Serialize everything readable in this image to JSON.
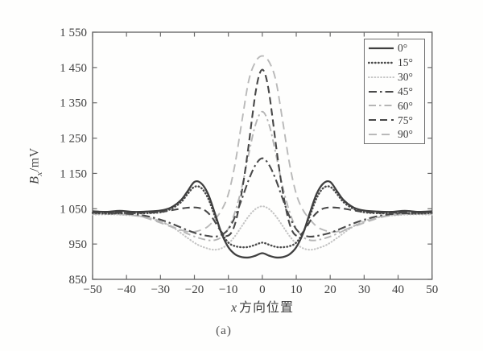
{
  "figure": {
    "caption": "(a)",
    "background": "#fefefd",
    "frame_color": "#6a6a6a",
    "text_color": "#3c3c3c"
  },
  "chart_data": {
    "type": "line",
    "title": "",
    "grid": false,
    "legend_position": "top-right",
    "xlabel_parts": [
      "x",
      "方向位置"
    ],
    "ylabel_parts": [
      "B",
      "x",
      "/mV"
    ],
    "xlim": [
      -50,
      50
    ],
    "ylim": [
      850,
      1550
    ],
    "xtick_values": [
      -50,
      -40,
      -30,
      -20,
      -10,
      0,
      10,
      20,
      30,
      40,
      50
    ],
    "xtick_labels": [
      "−50",
      "−40",
      "−30",
      "−20",
      "−10",
      "0",
      "10",
      "20",
      "30",
      "40",
      "50"
    ],
    "ytick_values": [
      850,
      950,
      1050,
      1150,
      1250,
      1350,
      1450,
      1550
    ],
    "ytick_labels": [
      "850",
      "950",
      "1 050",
      "1 150",
      "1 250",
      "1 350",
      "1 450",
      "1 550"
    ],
    "draw_order": [
      "30°",
      "90°",
      "60°",
      "75°",
      "45°",
      "15°",
      "0°"
    ],
    "series": [
      {
        "label": "0°",
        "style": "solid",
        "shade": "dark",
        "color": "#3f3f3f",
        "width": 2.3,
        "dash": "",
        "linecap": "butt",
        "points": [
          [
            -50,
            1043
          ],
          [
            -46,
            1041
          ],
          [
            -42,
            1044
          ],
          [
            -38,
            1041
          ],
          [
            -34,
            1042
          ],
          [
            -30,
            1045
          ],
          [
            -27,
            1053
          ],
          [
            -24,
            1074
          ],
          [
            -22,
            1100
          ],
          [
            -20,
            1126
          ],
          [
            -18,
            1122
          ],
          [
            -16,
            1092
          ],
          [
            -14,
            1038
          ],
          [
            -12,
            980
          ],
          [
            -10,
            941
          ],
          [
            -8,
            921
          ],
          [
            -6,
            913
          ],
          [
            -4,
            912
          ],
          [
            -2,
            917
          ],
          [
            0,
            924
          ],
          [
            2,
            917
          ],
          [
            4,
            912
          ],
          [
            6,
            913
          ],
          [
            8,
            921
          ],
          [
            10,
            941
          ],
          [
            12,
            980
          ],
          [
            14,
            1038
          ],
          [
            16,
            1092
          ],
          [
            18,
            1122
          ],
          [
            20,
            1126
          ],
          [
            22,
            1100
          ],
          [
            24,
            1074
          ],
          [
            27,
            1053
          ],
          [
            30,
            1045
          ],
          [
            34,
            1042
          ],
          [
            38,
            1041
          ],
          [
            42,
            1044
          ],
          [
            46,
            1041
          ],
          [
            50,
            1043
          ]
        ]
      },
      {
        "label": "15°",
        "style": "dotted",
        "shade": "dark",
        "color": "#4a4a4a",
        "width": 2.4,
        "dash": "0.6 3.4",
        "linecap": "round",
        "points": [
          [
            -50,
            1038
          ],
          [
            -45,
            1036
          ],
          [
            -40,
            1038
          ],
          [
            -35,
            1037
          ],
          [
            -30,
            1040
          ],
          [
            -27,
            1049
          ],
          [
            -24,
            1068
          ],
          [
            -22,
            1092
          ],
          [
            -20,
            1112
          ],
          [
            -18,
            1109
          ],
          [
            -16,
            1080
          ],
          [
            -14,
            1030
          ],
          [
            -12,
            983
          ],
          [
            -10,
            954
          ],
          [
            -8,
            944
          ],
          [
            -6,
            941
          ],
          [
            -4,
            942
          ],
          [
            -2,
            948
          ],
          [
            0,
            954
          ],
          [
            2,
            948
          ],
          [
            4,
            942
          ],
          [
            6,
            941
          ],
          [
            8,
            944
          ],
          [
            10,
            954
          ],
          [
            12,
            983
          ],
          [
            14,
            1030
          ],
          [
            16,
            1080
          ],
          [
            18,
            1109
          ],
          [
            20,
            1112
          ],
          [
            22,
            1092
          ],
          [
            24,
            1068
          ],
          [
            27,
            1049
          ],
          [
            30,
            1040
          ],
          [
            35,
            1037
          ],
          [
            40,
            1038
          ],
          [
            45,
            1036
          ],
          [
            50,
            1038
          ]
        ]
      },
      {
        "label": "30°",
        "style": "dotted",
        "shade": "light",
        "color": "#c4c4c4",
        "width": 2.1,
        "dash": "0.6 3.2",
        "linecap": "round",
        "points": [
          [
            -50,
            1033
          ],
          [
            -45,
            1034
          ],
          [
            -40,
            1032
          ],
          [
            -35,
            1028
          ],
          [
            -30,
            1015
          ],
          [
            -26,
            995
          ],
          [
            -22,
            967
          ],
          [
            -19,
            948
          ],
          [
            -16,
            937
          ],
          [
            -14,
            934
          ],
          [
            -12,
            938
          ],
          [
            -10,
            951
          ],
          [
            -8,
            973
          ],
          [
            -6,
            1001
          ],
          [
            -4,
            1029
          ],
          [
            -2,
            1049
          ],
          [
            0,
            1057
          ],
          [
            2,
            1049
          ],
          [
            4,
            1029
          ],
          [
            6,
            1001
          ],
          [
            8,
            973
          ],
          [
            10,
            951
          ],
          [
            12,
            938
          ],
          [
            14,
            934
          ],
          [
            16,
            937
          ],
          [
            19,
            948
          ],
          [
            22,
            967
          ],
          [
            26,
            995
          ],
          [
            30,
            1015
          ],
          [
            35,
            1028
          ],
          [
            40,
            1032
          ],
          [
            45,
            1034
          ],
          [
            50,
            1033
          ]
        ]
      },
      {
        "label": "45°",
        "style": "dashdot",
        "shade": "dark",
        "color": "#4a4a4a",
        "width": 2.1,
        "dash": "10 4 2.5 4",
        "linecap": "butt",
        "points": [
          [
            -50,
            1039
          ],
          [
            -45,
            1038
          ],
          [
            -40,
            1036
          ],
          [
            -35,
            1031
          ],
          [
            -30,
            1019
          ],
          [
            -26,
            1005
          ],
          [
            -22,
            989
          ],
          [
            -19,
            979
          ],
          [
            -16,
            973
          ],
          [
            -14,
            971
          ],
          [
            -12,
            976
          ],
          [
            -10,
            992
          ],
          [
            -8,
            1028
          ],
          [
            -6,
            1078
          ],
          [
            -4,
            1132
          ],
          [
            -2,
            1174
          ],
          [
            0,
            1193
          ],
          [
            2,
            1174
          ],
          [
            4,
            1132
          ],
          [
            6,
            1078
          ],
          [
            8,
            1028
          ],
          [
            10,
            992
          ],
          [
            12,
            976
          ],
          [
            14,
            971
          ],
          [
            16,
            973
          ],
          [
            19,
            979
          ],
          [
            22,
            989
          ],
          [
            26,
            1005
          ],
          [
            30,
            1019
          ],
          [
            35,
            1031
          ],
          [
            40,
            1036
          ],
          [
            45,
            1038
          ],
          [
            50,
            1039
          ]
        ]
      },
      {
        "label": "60°",
        "style": "dashdot",
        "shade": "light",
        "color": "#b5b5b5",
        "width": 1.9,
        "dash": "9 4 2.5 4",
        "linecap": "butt",
        "points": [
          [
            -50,
            1035
          ],
          [
            -45,
            1036
          ],
          [
            -40,
            1034
          ],
          [
            -35,
            1027
          ],
          [
            -30,
            1013
          ],
          [
            -26,
            997
          ],
          [
            -22,
            979
          ],
          [
            -19,
            968
          ],
          [
            -16,
            961
          ],
          [
            -14,
            961
          ],
          [
            -12,
            970
          ],
          [
            -10,
            994
          ],
          [
            -8,
            1042
          ],
          [
            -6,
            1112
          ],
          [
            -4,
            1205
          ],
          [
            -2,
            1288
          ],
          [
            0,
            1325
          ],
          [
            2,
            1288
          ],
          [
            4,
            1205
          ],
          [
            6,
            1112
          ],
          [
            8,
            1042
          ],
          [
            10,
            994
          ],
          [
            12,
            970
          ],
          [
            14,
            961
          ],
          [
            16,
            961
          ],
          [
            19,
            968
          ],
          [
            22,
            979
          ],
          [
            26,
            997
          ],
          [
            30,
            1013
          ],
          [
            35,
            1027
          ],
          [
            40,
            1034
          ],
          [
            45,
            1036
          ],
          [
            50,
            1035
          ]
        ]
      },
      {
        "label": "75°",
        "style": "dashed",
        "shade": "dark",
        "color": "#474747",
        "width": 2.1,
        "dash": "9 5",
        "linecap": "butt",
        "points": [
          [
            -50,
            1041
          ],
          [
            -45,
            1040
          ],
          [
            -40,
            1039
          ],
          [
            -35,
            1038
          ],
          [
            -30,
            1041
          ],
          [
            -26,
            1047
          ],
          [
            -22,
            1053
          ],
          [
            -19,
            1053
          ],
          [
            -17,
            1046
          ],
          [
            -15,
            1028
          ],
          [
            -13,
            998
          ],
          [
            -12,
            984
          ],
          [
            -11,
            974
          ],
          [
            -10,
            974
          ],
          [
            -9,
            984
          ],
          [
            -8,
            1008
          ],
          [
            -7,
            1048
          ],
          [
            -6,
            1100
          ],
          [
            -5,
            1162
          ],
          [
            -4,
            1232
          ],
          [
            -3,
            1308
          ],
          [
            -2,
            1378
          ],
          [
            -1,
            1426
          ],
          [
            0,
            1444
          ],
          [
            1,
            1426
          ],
          [
            2,
            1378
          ],
          [
            3,
            1308
          ],
          [
            4,
            1232
          ],
          [
            5,
            1162
          ],
          [
            6,
            1100
          ],
          [
            7,
            1048
          ],
          [
            8,
            1008
          ],
          [
            9,
            984
          ],
          [
            10,
            974
          ],
          [
            11,
            974
          ],
          [
            12,
            984
          ],
          [
            13,
            998
          ],
          [
            15,
            1028
          ],
          [
            17,
            1046
          ],
          [
            19,
            1053
          ],
          [
            22,
            1053
          ],
          [
            26,
            1047
          ],
          [
            30,
            1041
          ],
          [
            35,
            1038
          ],
          [
            40,
            1039
          ],
          [
            45,
            1040
          ],
          [
            50,
            1041
          ]
        ]
      },
      {
        "label": "90°",
        "style": "dashed",
        "shade": "light",
        "color": "#b9b9b9",
        "width": 1.9,
        "dash": "10 6",
        "linecap": "butt",
        "points": [
          [
            -50,
            1036
          ],
          [
            -45,
            1035
          ],
          [
            -40,
            1033
          ],
          [
            -36,
            1028
          ],
          [
            -32,
            1017
          ],
          [
            -28,
            1003
          ],
          [
            -24,
            990
          ],
          [
            -21,
            984
          ],
          [
            -18,
            990
          ],
          [
            -16,
            1000
          ],
          [
            -14,
            1020
          ],
          [
            -12,
            1046
          ],
          [
            -10,
            1092
          ],
          [
            -8,
            1178
          ],
          [
            -6,
            1298
          ],
          [
            -4,
            1413
          ],
          [
            -2,
            1466
          ],
          [
            0,
            1483
          ],
          [
            2,
            1466
          ],
          [
            4,
            1413
          ],
          [
            6,
            1298
          ],
          [
            8,
            1178
          ],
          [
            10,
            1092
          ],
          [
            12,
            1046
          ],
          [
            14,
            1020
          ],
          [
            16,
            1000
          ],
          [
            18,
            990
          ],
          [
            21,
            984
          ],
          [
            24,
            990
          ],
          [
            28,
            1003
          ],
          [
            32,
            1017
          ],
          [
            36,
            1028
          ],
          [
            40,
            1033
          ],
          [
            45,
            1035
          ],
          [
            50,
            1036
          ]
        ]
      }
    ]
  }
}
